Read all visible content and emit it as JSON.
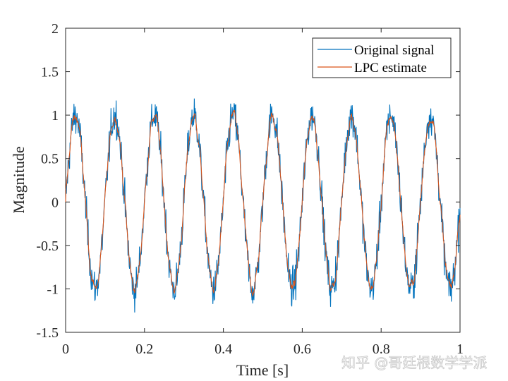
{
  "chart_data": {
    "type": "line",
    "title": "",
    "xlabel": "Time [s]",
    "ylabel": "Magnitude",
    "xlim": [
      0,
      1
    ],
    "ylim": [
      -1.5,
      2
    ],
    "xticks": [
      0,
      0.2,
      0.4,
      0.6,
      0.8,
      1
    ],
    "xtick_labels": [
      "0",
      "0.2",
      "0.4",
      "0.6",
      "0.8",
      "1"
    ],
    "yticks": [
      -1.5,
      -1,
      -0.5,
      0,
      0.5,
      1,
      1.5,
      2
    ],
    "ytick_labels": [
      "-1.5",
      "-1",
      "-0.5",
      "0",
      "0.5",
      "1",
      "1.5",
      "2"
    ],
    "grid": false,
    "legend_position": "top-right",
    "signal_frequency_hz": 10,
    "signal_amplitude": 1,
    "series": [
      {
        "name": "Original signal",
        "color": "#0072BD",
        "description_values": "sine 10 Hz with additive noise",
        "noise_std": 0.18
      },
      {
        "name": "LPC estimate",
        "color": "#D95319",
        "description_values": "smoothed sine 10 Hz",
        "noise_std": 0.07
      }
    ]
  },
  "watermark": "知乎 @哥廷根数学学派"
}
